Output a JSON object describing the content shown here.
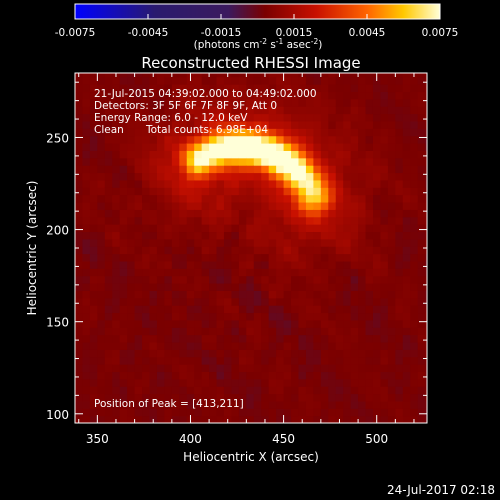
{
  "chart_data": {
    "type": "heatmap",
    "title": "Reconstructed RHESSI Image",
    "xlabel": "Heliocentric X (arcsec)",
    "ylabel": "Heliocentric Y (arcsec)",
    "xlim": [
      338,
      527
    ],
    "ylim": [
      95,
      285
    ],
    "x_ticks": [
      350,
      400,
      450,
      500
    ],
    "y_ticks": [
      100,
      150,
      200,
      250
    ],
    "colorbar": {
      "min": -0.0075,
      "max": 0.0075,
      "ticks": [
        "-0.0075",
        "-0.0045",
        "-0.0015",
        "0.0015",
        "0.0045",
        "0.0075"
      ],
      "unit_label": "(photons cm",
      "unit_sup1": "-2",
      "unit_mid1": " s",
      "unit_sup2": "-1",
      "unit_mid2": " asec",
      "unit_sup3": "-2",
      "unit_end": ")",
      "colormap": [
        "#0000ff",
        "#2a1a6e",
        "#3b1a5e",
        "#7a0000",
        "#c81000",
        "#ff6400",
        "#ffc800",
        "#ffffd8"
      ]
    },
    "source": {
      "center": [
        427,
        203
      ],
      "radius": 42,
      "arc_start_deg": 122,
      "arc_end_deg": 22,
      "width": 6.5,
      "peak_value": 0.0075,
      "background_value": 0.0003
    },
    "peak_position": [
      413,
      211
    ],
    "annotations": {
      "time_range": "21-Jul-2015 04:39:02.000 to 04:49:02.000",
      "detectors": "Detectors: 3F 5F 6F 7F 8F 9F, Att 0",
      "energy": "Energy Range: 6.0 - 12.0 keV",
      "method": "Clean",
      "total_counts": "Total counts: 6.98E+04",
      "peak_text": "Position of Peak = [413,211]"
    }
  },
  "footer": {
    "timestamp": "24-Jul-2017 02:18"
  }
}
